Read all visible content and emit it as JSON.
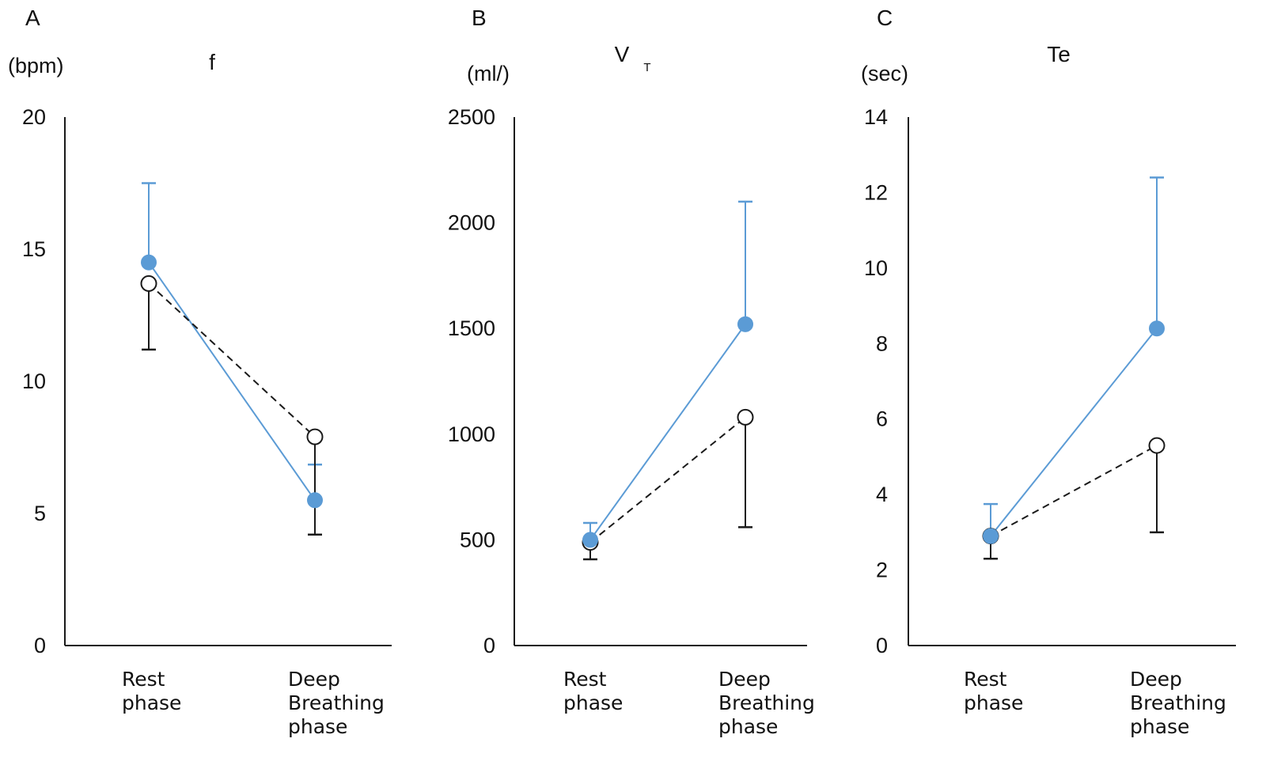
{
  "colors": {
    "open_series": "#1a1a1a",
    "filled_series": "#5b9bd5",
    "axis": "#1a1a1a"
  },
  "chart_data": [
    {
      "type": "line",
      "panel_letter": "A",
      "title": "f",
      "title_subscript": "",
      "ylabel": "(bpm)",
      "ylim": [
        0,
        20
      ],
      "yticks": [
        0,
        5,
        10,
        15,
        20
      ],
      "categories": [
        [
          "Rest",
          "phase"
        ],
        [
          "Deep",
          "Breathing",
          "phase"
        ]
      ],
      "series": [
        {
          "marker": "open-circle",
          "line_style": "dashed",
          "values": [
            13.7,
            7.9
          ],
          "error": [
            2.5,
            3.7
          ],
          "error_direction": "down"
        },
        {
          "marker": "filled-circle",
          "line_style": "solid",
          "values": [
            14.5,
            5.5
          ],
          "error": [
            3.0,
            1.35
          ],
          "error_direction": "up"
        }
      ]
    },
    {
      "type": "line",
      "panel_letter": "B",
      "title": "V",
      "title_subscript": "T",
      "ylabel": "(ml/)",
      "ylim": [
        0,
        2500
      ],
      "yticks": [
        0,
        500,
        1000,
        1500,
        2000,
        2500
      ],
      "categories": [
        [
          "Rest",
          "phase"
        ],
        [
          "Deep",
          "Breathing",
          "phase"
        ]
      ],
      "series": [
        {
          "marker": "open-circle",
          "line_style": "dashed",
          "values": [
            488,
            1080
          ],
          "error": [
            80,
            520
          ],
          "error_direction": "down"
        },
        {
          "marker": "filled-circle",
          "line_style": "solid",
          "values": [
            500,
            1520
          ],
          "error": [
            80,
            580
          ],
          "error_direction": "up"
        }
      ]
    },
    {
      "type": "line",
      "panel_letter": "C",
      "title": "Te",
      "title_subscript": "",
      "ylabel": "(sec)",
      "ylim": [
        0,
        14
      ],
      "yticks": [
        0,
        2,
        4,
        6,
        8,
        10,
        12,
        14
      ],
      "categories": [
        [
          "Rest",
          "phase"
        ],
        [
          "Deep",
          "Breathing",
          "phase"
        ]
      ],
      "series": [
        {
          "marker": "open-circle",
          "line_style": "dashed",
          "values": [
            2.9,
            5.3
          ],
          "error": [
            0.6,
            2.3
          ],
          "error_direction": "down"
        },
        {
          "marker": "filled-circle",
          "line_style": "solid",
          "values": [
            2.9,
            8.4
          ],
          "error": [
            0.85,
            4.0
          ],
          "error_direction": "up"
        }
      ]
    }
  ]
}
